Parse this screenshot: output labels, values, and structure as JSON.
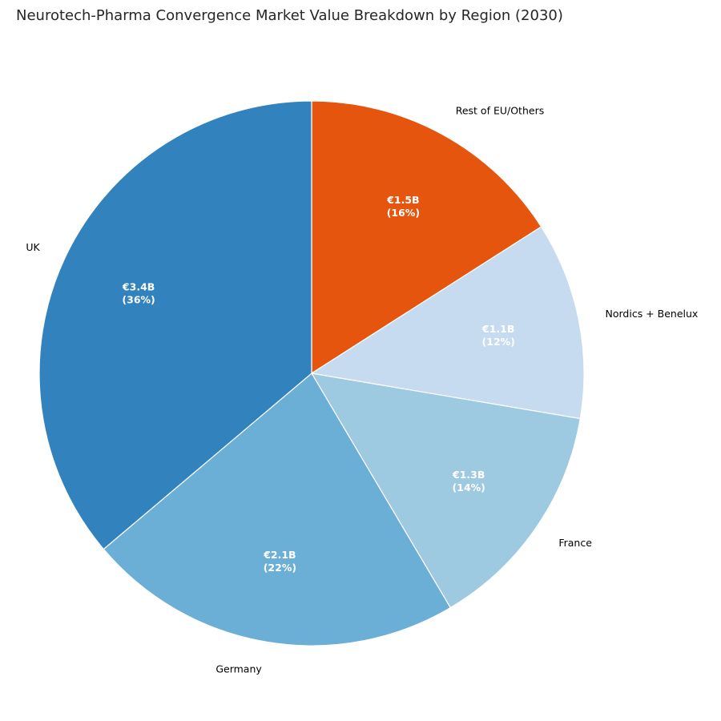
{
  "chart_data": {
    "type": "pie",
    "title": "Neurotech-Pharma Convergence Market Value Breakdown by Region (2030)",
    "start_angle_deg": 90,
    "direction": "clockwise",
    "edge_color": "#ffffff",
    "slices": [
      {
        "label": "Rest of EU/Others",
        "value": 1.5,
        "value_text": "€1.5B",
        "pct_text": "(16%)",
        "color": "#e6550d"
      },
      {
        "label": "Nordics + Benelux",
        "value": 1.1,
        "value_text": "€1.1B",
        "pct_text": "(12%)",
        "color": "#c6dbef"
      },
      {
        "label": "France",
        "value": 1.3,
        "value_text": "€1.3B",
        "pct_text": "(14%)",
        "color": "#9ecae1"
      },
      {
        "label": "Germany",
        "value": 2.1,
        "value_text": "€2.1B",
        "pct_text": "(22%)",
        "color": "#6baed6"
      },
      {
        "label": "UK",
        "value": 3.4,
        "value_text": "€3.4B",
        "pct_text": "(36%)",
        "color": "#3182bd"
      }
    ]
  }
}
